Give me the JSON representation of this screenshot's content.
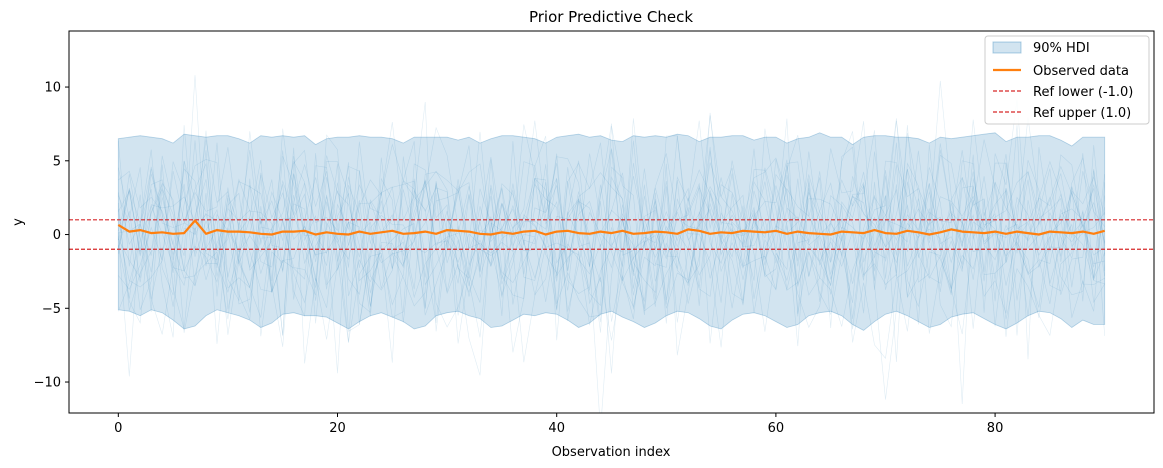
{
  "chart_data": {
    "type": "line",
    "title": "Prior Predictive Check",
    "xlabel": "Observation index",
    "ylabel": "y",
    "xlim": [
      -4.5,
      94.5
    ],
    "ylim": [
      -12.1,
      13.8
    ],
    "xticks": [
      0,
      20,
      40,
      60,
      80
    ],
    "yticks": [
      -10,
      -5,
      0,
      5,
      10
    ],
    "ytick_labels": [
      "−10",
      "−5",
      "0",
      "5",
      "10"
    ],
    "hdi": {
      "name": "90% HDI",
      "color": "#1f77b4",
      "x": [
        0,
        1,
        2,
        3,
        4,
        5,
        6,
        7,
        8,
        9,
        10,
        11,
        12,
        13,
        14,
        15,
        16,
        17,
        18,
        19,
        20,
        21,
        22,
        23,
        24,
        25,
        26,
        27,
        28,
        29,
        30,
        31,
        32,
        33,
        34,
        35,
        36,
        37,
        38,
        39,
        40,
        41,
        42,
        43,
        44,
        45,
        46,
        47,
        48,
        49,
        50,
        51,
        52,
        53,
        54,
        55,
        56,
        57,
        58,
        59,
        60,
        61,
        62,
        63,
        64,
        65,
        66,
        67,
        68,
        69,
        70,
        71,
        72,
        73,
        74,
        75,
        76,
        77,
        78,
        79,
        80,
        81,
        82,
        83,
        84,
        85,
        86,
        87,
        88,
        89,
        90
      ],
      "upper": [
        6.5,
        6.6,
        6.7,
        6.6,
        6.5,
        6.2,
        6.8,
        6.7,
        6.6,
        6.7,
        6.7,
        6.5,
        6.2,
        6.7,
        6.6,
        6.7,
        6.6,
        6.7,
        6.1,
        6.5,
        6.6,
        6.6,
        6.7,
        6.6,
        6.6,
        6.5,
        6.2,
        6.6,
        6.6,
        6.6,
        6.6,
        6.4,
        6.6,
        6.2,
        6.5,
        6.7,
        6.7,
        6.6,
        6.5,
        6.2,
        6.6,
        6.7,
        6.8,
        6.6,
        6.7,
        6.4,
        6.3,
        6.7,
        6.6,
        6.7,
        6.6,
        6.8,
        6.7,
        6.3,
        6.6,
        6.6,
        6.7,
        6.7,
        6.4,
        6.6,
        6.6,
        6.2,
        6.5,
        6.6,
        6.9,
        6.6,
        6.6,
        6.1,
        6.6,
        6.7,
        6.7,
        6.6,
        6.6,
        6.5,
        6.2,
        6.6,
        6.5,
        6.6,
        6.7,
        6.8,
        6.9,
        6.3,
        6.6,
        6.6,
        6.7,
        6.7,
        6.4,
        6.0,
        6.6,
        6.6,
        6.6
      ],
      "lower": [
        -5.1,
        -5.2,
        -5.5,
        -5.1,
        -5.3,
        -5.8,
        -6.4,
        -6.2,
        -5.5,
        -5.1,
        -5.3,
        -5.5,
        -5.8,
        -6.3,
        -6.0,
        -5.4,
        -5.3,
        -5.5,
        -5.5,
        -5.6,
        -6.0,
        -6.4,
        -5.9,
        -5.5,
        -5.3,
        -5.6,
        -5.9,
        -6.4,
        -6.2,
        -5.5,
        -5.3,
        -5.2,
        -5.5,
        -5.7,
        -6.3,
        -6.2,
        -5.8,
        -5.4,
        -5.5,
        -5.3,
        -5.4,
        -5.8,
        -6.3,
        -6.0,
        -5.4,
        -5.2,
        -5.6,
        -5.9,
        -6.3,
        -6.0,
        -5.5,
        -5.2,
        -5.3,
        -5.7,
        -6.2,
        -6.4,
        -5.8,
        -5.4,
        -5.3,
        -5.5,
        -5.9,
        -6.3,
        -6.1,
        -5.5,
        -5.3,
        -5.2,
        -5.5,
        -6.1,
        -6.5,
        -5.9,
        -5.4,
        -5.2,
        -5.5,
        -5.9,
        -6.3,
        -6.1,
        -5.6,
        -5.4,
        -5.3,
        -5.7,
        -6.1,
        -6.4,
        -6.0,
        -5.5,
        -5.2,
        -5.3,
        -5.7,
        -6.3,
        -5.8,
        -6.1,
        -6.1
      ]
    },
    "observed": {
      "name": "Observed data",
      "color": "#ff7f0e",
      "x": [
        0,
        1,
        2,
        3,
        4,
        5,
        6,
        7,
        8,
        9,
        10,
        11,
        12,
        13,
        14,
        15,
        16,
        17,
        18,
        19,
        20,
        21,
        22,
        23,
        24,
        25,
        26,
        27,
        28,
        29,
        30,
        31,
        32,
        33,
        34,
        35,
        36,
        37,
        38,
        39,
        40,
        41,
        42,
        43,
        44,
        45,
        46,
        47,
        48,
        49,
        50,
        51,
        52,
        53,
        54,
        55,
        56,
        57,
        58,
        59,
        60,
        61,
        62,
        63,
        64,
        65,
        66,
        67,
        68,
        69,
        70,
        71,
        72,
        73,
        74,
        75,
        76,
        77,
        78,
        79,
        80,
        81,
        82,
        83,
        84,
        85,
        86,
        87,
        88,
        89,
        90
      ],
      "y": [
        0.65,
        0.2,
        0.3,
        0.1,
        0.15,
        0.05,
        0.1,
        0.95,
        0.05,
        0.3,
        0.2,
        0.2,
        0.15,
        0.05,
        0.0,
        0.2,
        0.2,
        0.25,
        0.0,
        0.15,
        0.05,
        0.0,
        0.2,
        0.05,
        0.15,
        0.25,
        0.05,
        0.1,
        0.2,
        0.05,
        0.3,
        0.25,
        0.2,
        0.05,
        0.0,
        0.15,
        0.05,
        0.2,
        0.25,
        0.0,
        0.2,
        0.25,
        0.1,
        0.05,
        0.2,
        0.1,
        0.25,
        0.05,
        0.1,
        0.2,
        0.15,
        0.05,
        0.35,
        0.25,
        0.05,
        0.15,
        0.1,
        0.25,
        0.2,
        0.15,
        0.25,
        0.05,
        0.2,
        0.1,
        0.05,
        0.0,
        0.2,
        0.15,
        0.1,
        0.3,
        0.1,
        0.05,
        0.25,
        0.15,
        0.0,
        0.15,
        0.35,
        0.2,
        0.15,
        0.1,
        0.2,
        0.05,
        0.2,
        0.1,
        0.0,
        0.2,
        0.15,
        0.1,
        0.2,
        0.05,
        0.25
      ]
    },
    "reference_lines": [
      {
        "name": "Ref lower (-1.0)",
        "value": -1.0,
        "color": "#d62728",
        "style": "dashed"
      },
      {
        "name": "Ref upper (1.0)",
        "value": 1.0,
        "color": "#d62728",
        "style": "dashed"
      }
    ],
    "prior_draws": {
      "count": 20,
      "color": "#1f77b4",
      "spread_sd": 3.3
    },
    "legend": {
      "placement": "top-right",
      "entries": [
        "90% HDI",
        "Observed data",
        "Ref lower (-1.0)",
        "Ref upper (1.0)"
      ]
    }
  }
}
